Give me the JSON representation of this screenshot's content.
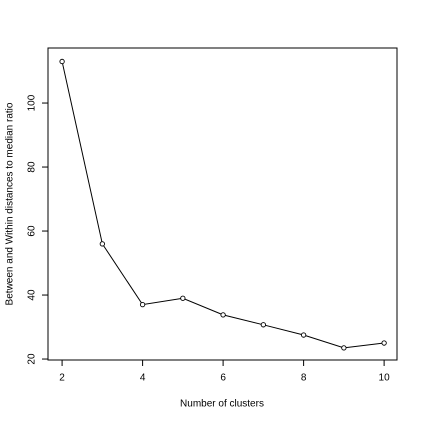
{
  "chart_data": {
    "type": "line",
    "x_label": "Number of clusters",
    "y_label": "Between and Within distances to median ratio",
    "x": [
      2,
      3,
      4,
      5,
      6,
      7,
      8,
      9,
      10
    ],
    "values": [
      113,
      56,
      37,
      39,
      33.8,
      30.7,
      27.5,
      23.5,
      25
    ],
    "color": "#000000",
    "xlim": [
      1.65,
      10.32
    ],
    "ylim": [
      19.7,
      117.2
    ],
    "xticks": [
      2,
      4,
      6,
      8,
      10
    ],
    "yticks": [
      20,
      40,
      60,
      80,
      100
    ]
  }
}
